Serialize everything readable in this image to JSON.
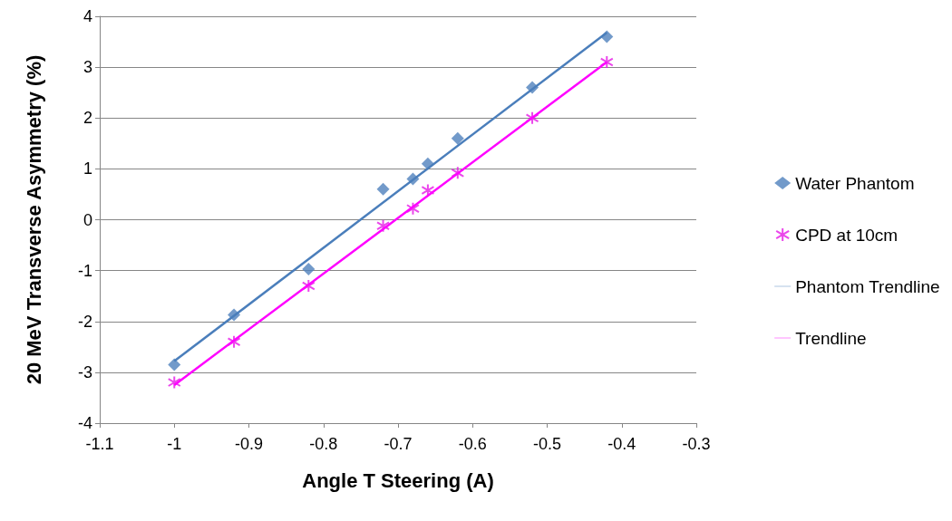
{
  "chart_data": {
    "type": "scatter",
    "xlabel": "Angle T Steering (A)",
    "ylabel": "20 MeV Transverse Asymmetry (%)",
    "xlim": [
      -1.1,
      -0.3
    ],
    "xticks": [
      -1.1,
      -1,
      -0.9,
      -0.8,
      -0.7,
      -0.6,
      -0.5,
      -0.4,
      -0.3
    ],
    "ylim": [
      -4,
      4
    ],
    "yticks": [
      -4,
      -3,
      -2,
      -1,
      0,
      1,
      2,
      3,
      4
    ],
    "grid": "y",
    "legend": "right",
    "series": [
      {
        "name": "Water Phantom",
        "marker": "diamond",
        "color": "#4f81bd",
        "x": [
          -1,
          -0.92,
          -0.82,
          -0.72,
          -0.68,
          -0.66,
          -0.62,
          -0.52,
          -0.42
        ],
        "values": [
          -2.85,
          -1.87,
          -0.97,
          0.6,
          0.8,
          1.1,
          1.6,
          2.6,
          3.6
        ]
      },
      {
        "name": "CPD at 10cm",
        "marker": "cross",
        "color": "#e619e6",
        "x": [
          -1,
          -0.92,
          -0.82,
          -0.72,
          -0.68,
          -0.66,
          -0.62,
          -0.52,
          -0.42
        ],
        "values": [
          -3.2,
          -2.4,
          -1.3,
          -0.12,
          0.22,
          0.58,
          0.92,
          2.0,
          3.1
        ]
      },
      {
        "name": "Phantom Trendline",
        "type": "line",
        "marker": "none",
        "color": "#4a7ebb",
        "x": [
          -1,
          -0.42
        ],
        "values": [
          -2.78,
          3.68
        ]
      },
      {
        "name": "Trendline",
        "type": "line",
        "marker": "none",
        "color": "#ff00ff",
        "x": [
          -1,
          -0.42
        ],
        "values": [
          -3.25,
          3.1
        ]
      }
    ]
  }
}
